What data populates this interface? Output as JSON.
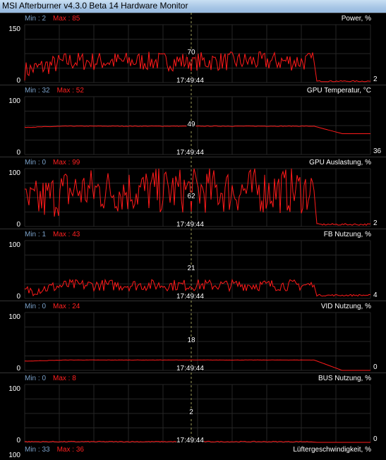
{
  "window": {
    "title": "MSI Afterburner v4.3.0 Beta 14 Hardware Monitor"
  },
  "time_label": "17:49:44",
  "min_prefix": "Min : ",
  "max_prefix": "Max : ",
  "graph_color": "#ff1a1a",
  "min_color": "#7aa0c8",
  "graphs": [
    {
      "id": "power",
      "title": "Power, %",
      "min": "2",
      "max": "85",
      "axis_top": "150",
      "axis_bottom": "0",
      "cursor_value": "70",
      "current_value": "2",
      "range": [
        0,
        150
      ],
      "level": 55,
      "amp": 25,
      "drop": 2,
      "style": "noisy"
    },
    {
      "id": "gpu-temp",
      "title": "GPU Temperatur, °C",
      "min": "32",
      "max": "52",
      "axis_top": "100",
      "axis_bottom": "0",
      "cursor_value": "49",
      "current_value": "36",
      "range": [
        0,
        100
      ],
      "level": 49,
      "amp": 1.5,
      "drop": 36,
      "style": "smooth"
    },
    {
      "id": "gpu-load",
      "title": "GPU Auslastung, %",
      "min": "0",
      "max": "99",
      "axis_top": "100",
      "axis_bottom": "0",
      "cursor_value": "62",
      "current_value": "2",
      "range": [
        0,
        100
      ],
      "level": 62,
      "amp": 40,
      "drop": 2,
      "style": "noisy"
    },
    {
      "id": "fb-usage",
      "title": "FB Nutzung, %",
      "min": "1",
      "max": "43",
      "axis_top": "100",
      "axis_bottom": "0",
      "cursor_value": "21",
      "current_value": "4",
      "range": [
        0,
        100
      ],
      "level": 23,
      "amp": 10,
      "drop": 4,
      "style": "noisy"
    },
    {
      "id": "vid-usage",
      "title": "VID Nutzung, %",
      "min": "0",
      "max": "24",
      "axis_top": "100",
      "axis_bottom": "0",
      "cursor_value": "18",
      "current_value": "0",
      "range": [
        0,
        100
      ],
      "level": 18,
      "amp": 0.8,
      "drop": 0,
      "style": "smooth"
    },
    {
      "id": "bus-usage",
      "title": "BUS Nutzung, %",
      "min": "0",
      "max": "8",
      "axis_top": "100",
      "axis_bottom": "0",
      "cursor_value": "2",
      "current_value": "0",
      "range": [
        0,
        100
      ],
      "level": 0.5,
      "amp": 1.5,
      "drop": 0,
      "style": "flat"
    }
  ],
  "partial_graph": {
    "title": "Lüftergeschwindigkeit, %",
    "min": "33",
    "max": "36",
    "axis_top": "100"
  }
}
